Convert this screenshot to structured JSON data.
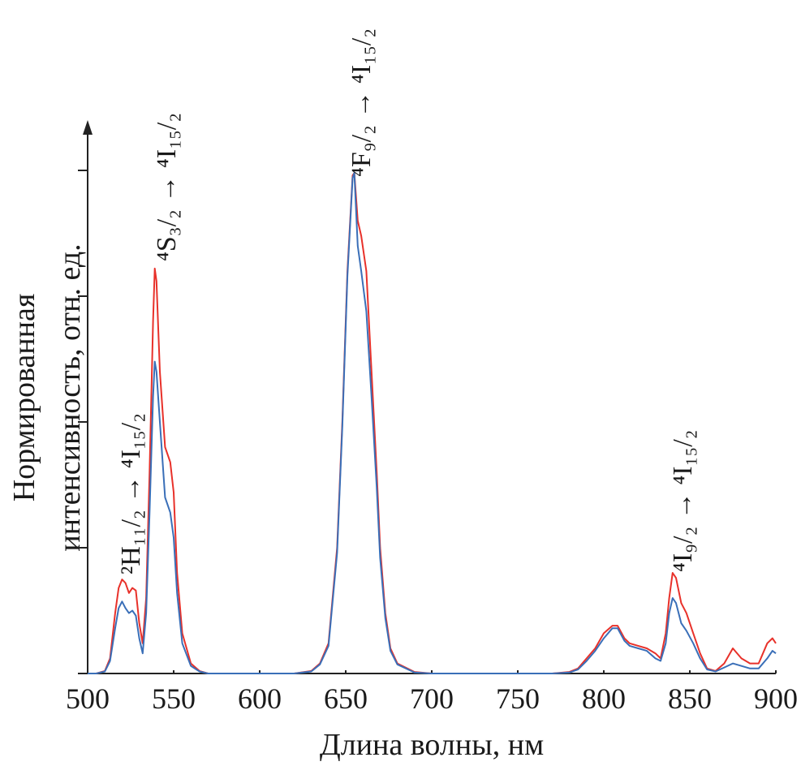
{
  "chart_data": {
    "type": "line",
    "xlabel": "Длина волны, нм",
    "ylabel": [
      "Нормированная",
      "интенсивность, отн. ед."
    ],
    "annotations": [
      "²H₁₁/₂ → ⁴I₁₅/₂",
      "⁴S₃/₂ → ⁴I₁₅/₂",
      "⁴F₉/₂ → ⁴I₁₅/₂",
      "⁴I₉/₂ → ⁴I₁₅/₂"
    ],
    "x": [
      500,
      505,
      510,
      513,
      516,
      518,
      520,
      522,
      524,
      526,
      528,
      530,
      532,
      534,
      536,
      538,
      539,
      540,
      542,
      545,
      548,
      550,
      552,
      555,
      560,
      565,
      570,
      620,
      630,
      635,
      640,
      645,
      648,
      651,
      654,
      655,
      657,
      659,
      662,
      665,
      668,
      670,
      673,
      676,
      680,
      690,
      700,
      770,
      780,
      785,
      790,
      795,
      800,
      805,
      808,
      812,
      815,
      820,
      825,
      830,
      833,
      836,
      838,
      840,
      842,
      845,
      848,
      852,
      856,
      860,
      865,
      870,
      875,
      880,
      885,
      890,
      895,
      898,
      900
    ],
    "series": [
      {
        "color": "#e8312a",
        "values": [
          0,
          0,
          0.005,
          0.03,
          0.12,
          0.17,
          0.187,
          0.18,
          0.16,
          0.17,
          0.165,
          0.1,
          0.06,
          0.15,
          0.4,
          0.7,
          0.805,
          0.78,
          0.6,
          0.45,
          0.42,
          0.36,
          0.2,
          0.08,
          0.02,
          0.005,
          0,
          0,
          0.005,
          0.02,
          0.06,
          0.25,
          0.5,
          0.8,
          0.99,
          0.995,
          0.9,
          0.87,
          0.8,
          0.6,
          0.4,
          0.25,
          0.12,
          0.05,
          0.02,
          0.003,
          0,
          0,
          0.003,
          0.01,
          0.03,
          0.05,
          0.08,
          0.095,
          0.095,
          0.07,
          0.06,
          0.055,
          0.05,
          0.04,
          0.03,
          0.08,
          0.15,
          0.2,
          0.19,
          0.14,
          0.12,
          0.08,
          0.04,
          0.01,
          0.005,
          0.02,
          0.05,
          0.03,
          0.02,
          0.02,
          0.06,
          0.07,
          0.06
        ]
      },
      {
        "color": "#3a6fb8",
        "values": [
          0,
          0,
          0.004,
          0.025,
          0.09,
          0.13,
          0.143,
          0.13,
          0.12,
          0.125,
          0.115,
          0.07,
          0.04,
          0.12,
          0.32,
          0.55,
          0.62,
          0.6,
          0.5,
          0.35,
          0.32,
          0.27,
          0.16,
          0.06,
          0.015,
          0.004,
          0,
          0,
          0.004,
          0.018,
          0.055,
          0.24,
          0.49,
          0.79,
          0.985,
          0.995,
          0.85,
          0.8,
          0.72,
          0.55,
          0.37,
          0.23,
          0.11,
          0.045,
          0.018,
          0.002,
          0,
          0,
          0.002,
          0.008,
          0.025,
          0.045,
          0.07,
          0.09,
          0.09,
          0.065,
          0.055,
          0.05,
          0.045,
          0.03,
          0.025,
          0.06,
          0.12,
          0.15,
          0.14,
          0.1,
          0.085,
          0.06,
          0.03,
          0.008,
          0.004,
          0.012,
          0.02,
          0.015,
          0.01,
          0.01,
          0.03,
          0.045,
          0.04
        ]
      }
    ],
    "xlim": [
      500,
      900
    ],
    "xticks": [
      500,
      550,
      600,
      650,
      700,
      750,
      800,
      850,
      900
    ],
    "ylim": [
      0,
      1.1
    ],
    "yticks": [
      0,
      0.25,
      0.5,
      0.75,
      1
    ]
  }
}
